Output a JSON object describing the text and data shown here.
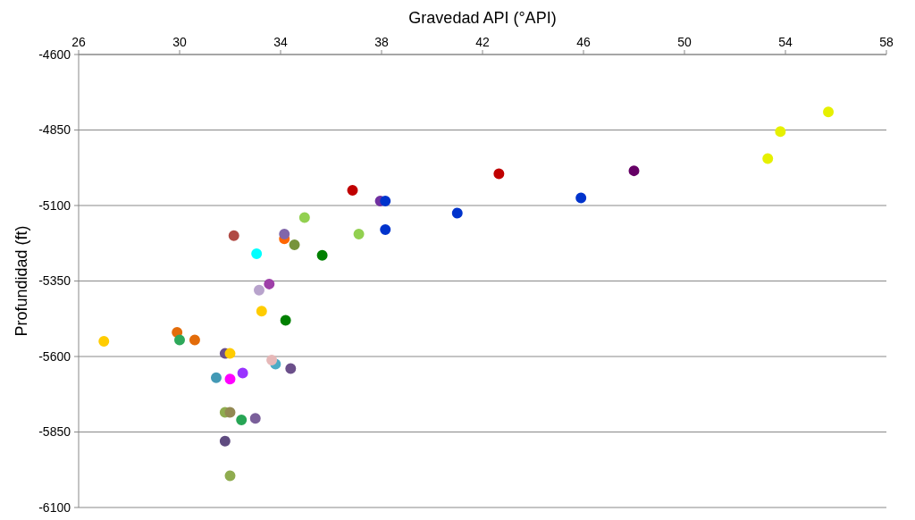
{
  "chart_data": {
    "type": "scatter",
    "xlabel": "Gravedad API (°API)",
    "ylabel": "Profundidad (ft)",
    "x": [
      27.0,
      29.9,
      30.0,
      30.6,
      31.8,
      32.0,
      31.45,
      32.0,
      32.5,
      31.8,
      32.0,
      32.45,
      33.0,
      31.8,
      32.0,
      32.15,
      33.05,
      33.15,
      33.55,
      33.25,
      34.2,
      34.15,
      34.15,
      34.55,
      34.95,
      35.65,
      37.1,
      36.85,
      37.95,
      38.15,
      38.15,
      33.8,
      33.65,
      34.4,
      41.0,
      42.65,
      45.9,
      48.0,
      53.3,
      53.8,
      55.7
    ],
    "values": [
      -5550,
      -5520,
      -5545,
      -5545,
      -5590,
      -5590,
      -5670,
      -5675,
      -5655,
      -5785,
      -5785,
      -5810,
      -5805,
      -5880,
      -5995,
      -5200,
      -5260,
      -5380,
      -5360,
      -5450,
      -5480,
      -5210,
      -5195,
      -5230,
      -5140,
      -5265,
      -5195,
      -5050,
      -5085,
      -5085,
      -5180,
      -5625,
      -5612,
      -5640,
      -5125,
      -4995,
      -5075,
      -4985,
      -4945,
      -4855,
      -4790
    ],
    "colors": [
      "#ffcc00",
      "#e36c0a",
      "#2ea85a",
      "#e36c0a",
      "#6b4f8a",
      "#ffcc00",
      "#4399b5",
      "#ff00ff",
      "#9933ff",
      "#8fac4f",
      "#938953",
      "#27a555",
      "#7a5f9a",
      "#5f4b80",
      "#8fac4f",
      "#b04a44",
      "#00ffff",
      "#b8a3cc",
      "#9e3fa8",
      "#ffcc00",
      "#008000",
      "#ff6600",
      "#8066aa",
      "#77933c",
      "#92d050",
      "#008000",
      "#92d050",
      "#c00000",
      "#7030a0",
      "#0033cc",
      "#0033cc",
      "#4bacc6",
      "#e6b8b8",
      "#6b4f8a",
      "#0033cc",
      "#c00000",
      "#0033cc",
      "#660066",
      "#e6f000",
      "#e6f000",
      "#e6f000"
    ],
    "xlim": [
      26,
      58
    ],
    "xticks": [
      26,
      30,
      34,
      38,
      42,
      46,
      50,
      54,
      58
    ],
    "ylim": [
      -6100,
      -4600
    ],
    "yticks": [
      -6100,
      -5850,
      -5600,
      -5350,
      -5100,
      -4850,
      -4600
    ],
    "grid": "y",
    "marker": "circle"
  }
}
